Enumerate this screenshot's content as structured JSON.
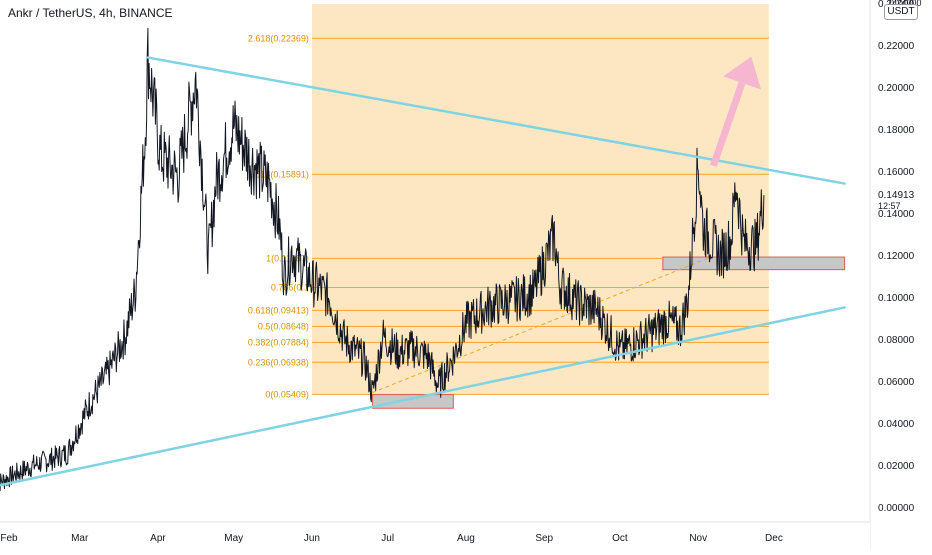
{
  "header": {
    "title": "Ankr / TetherUS, 4h, BINANCE",
    "currency_button": "USDT"
  },
  "price_badge": {
    "price": "0.14913",
    "countdown": "12:57"
  },
  "colors": {
    "trendline": "#7fd3e3",
    "fib_zone_fill": "#fde3b8",
    "fib_line": "#f5a623",
    "fib_label": "#d99200",
    "candle": "#131722",
    "arrow": "#f7b6cf",
    "box_fill": "#c7c7c7",
    "box_border": "#e05a5a"
  },
  "chart_data": {
    "type": "line",
    "instrument": "Ankr / TetherUS, 4h, BINANCE",
    "x_tick_labels": [
      "Feb",
      "Mar",
      "Apr",
      "May",
      "Jun",
      "Jul",
      "Aug",
      "Sep",
      "Oct",
      "Nov",
      "Dec"
    ],
    "y_tick_labels": [
      "0.00000",
      "0.02000",
      "0.04000",
      "0.06000",
      "0.08000",
      "0.10000",
      "0.12000",
      "0.14000",
      "0.16000",
      "0.18000",
      "0.20000",
      "0.22000",
      "0.24000"
    ],
    "ylim": [
      -0.003,
      0.24
    ],
    "last_price": 0.14913,
    "series": [
      {
        "values": [
          [
            "Jan 27",
            0.0115
          ],
          [
            "Feb 10",
            0.02
          ],
          [
            "Feb 24",
            0.026
          ],
          [
            "Mar 05",
            0.05
          ],
          [
            "Mar 12",
            0.064
          ],
          [
            "Mar 19",
            0.082
          ],
          [
            "Mar 23",
            0.103
          ],
          [
            "Mar 27",
            0.18
          ],
          [
            "Mar 28",
            0.215
          ],
          [
            "Apr 02",
            0.168
          ],
          [
            "Apr 09",
            0.158
          ],
          [
            "Apr 16",
            0.205
          ],
          [
            "Apr 21",
            0.12
          ],
          [
            "Apr 24",
            0.155
          ],
          [
            "May 01",
            0.182
          ],
          [
            "May 08",
            0.165
          ],
          [
            "May 15",
            0.155
          ],
          [
            "May 19",
            0.135
          ],
          [
            "May 21",
            0.11
          ],
          [
            "May 24",
            0.122
          ],
          [
            "Jun 01",
            0.108
          ],
          [
            "Jun 08",
            0.1
          ],
          [
            "Jun 14",
            0.08
          ],
          [
            "Jun 22",
            0.07
          ],
          [
            "Jun 25",
            0.054
          ],
          [
            "Jun 29",
            0.082
          ],
          [
            "Jul 05",
            0.074
          ],
          [
            "Jul 11",
            0.076
          ],
          [
            "Jul 17",
            0.072
          ],
          [
            "Jul 21",
            0.058
          ],
          [
            "Jul 27",
            0.072
          ],
          [
            "Aug 01",
            0.088
          ],
          [
            "Aug 10",
            0.096
          ],
          [
            "Aug 20",
            0.099
          ],
          [
            "Aug 28",
            0.103
          ],
          [
            "Sep 05",
            0.13
          ],
          [
            "Sep 07",
            0.107
          ],
          [
            "Sep 14",
            0.098
          ],
          [
            "Sep 22",
            0.094
          ],
          [
            "Oct 01",
            0.075
          ],
          [
            "Oct 10",
            0.081
          ],
          [
            "Oct 20",
            0.089
          ],
          [
            "Oct 25",
            0.085
          ],
          [
            "Oct 28",
            0.1
          ],
          [
            "Nov 01",
            0.165
          ],
          [
            "Nov 03",
            0.133
          ],
          [
            "Nov 06",
            0.128
          ],
          [
            "Nov 10",
            0.12
          ],
          [
            "Nov 14",
            0.128
          ],
          [
            "Nov 16",
            0.155
          ],
          [
            "Nov 19",
            0.126
          ],
          [
            "Nov 24",
            0.125
          ],
          [
            "Nov 27",
            0.149
          ]
        ]
      }
    ],
    "fib_levels": [
      {
        "label": "0(0.05409)",
        "value": 0.05409
      },
      {
        "label": "0.236(0.06938)",
        "value": 0.06938
      },
      {
        "label": "0.382(0.07884)",
        "value": 0.07884
      },
      {
        "label": "0.5(0.08648)",
        "value": 0.08648
      },
      {
        "label": "0.618(0.09413)",
        "value": 0.09413
      },
      {
        "label": "0.786(0.1",
        "value": 0.105
      },
      {
        "label": "1(0.11887)",
        "value": 0.11887
      },
      {
        "label": "1.618(0.15891)",
        "value": 0.15891
      },
      {
        "label": "2.618(0.22369)",
        "value": 0.22369
      }
    ],
    "fib_range": {
      "start": "Jun 01",
      "end": "Nov 29",
      "bottom": 0.054,
      "top": 0.24
    },
    "trendlines": [
      {
        "from": [
          "Mar 28",
          0.2145
        ],
        "to": [
          "Dec 29",
          0.1545
        ]
      },
      {
        "from": [
          "Jan 27",
          0.0105
        ],
        "to": [
          "Dec 29",
          0.0955
        ]
      }
    ],
    "dashed_line": {
      "from": [
        "Jun 25",
        0.055
      ],
      "to": [
        "Nov 06",
        0.1195
      ]
    },
    "boxes": [
      {
        "x0": "Jun 25",
        "x1": "Jul 27",
        "y0": 0.0475,
        "y1": 0.054
      },
      {
        "x0": "Oct 18",
        "x1": "Dec 29",
        "y0": 0.1135,
        "y1": 0.1195
      }
    ],
    "arrow": {
      "from": [
        "Nov 07",
        0.163
      ],
      "to": [
        "Nov 22",
        0.215
      ]
    }
  }
}
